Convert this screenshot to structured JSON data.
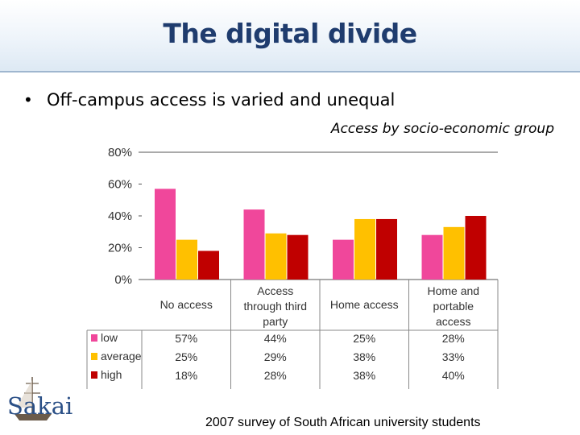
{
  "slide": {
    "title": "The digital divide",
    "bullet": "Off-campus access is varied and unequal",
    "chart_caption": "Access by socio-economic group",
    "footer": "2007 survey of South African university students",
    "logo_text": "Sakai"
  },
  "colors": {
    "low": "#f0479b",
    "average": "#ffc000",
    "high": "#c00000",
    "title": "#1f3c6e"
  },
  "chart_data": {
    "type": "bar",
    "title": "Access by socio-economic group",
    "categories": [
      [
        "No access"
      ],
      [
        "Access",
        "through third",
        "party"
      ],
      [
        "Home access"
      ],
      [
        "Home and",
        "portable",
        "access"
      ]
    ],
    "series": [
      {
        "name": "low",
        "values": [
          57,
          44,
          25,
          28
        ],
        "labels": [
          "57%",
          "44%",
          "25%",
          "28%"
        ]
      },
      {
        "name": "average",
        "values": [
          25,
          29,
          38,
          33
        ],
        "labels": [
          "25%",
          "29%",
          "38%",
          "33%"
        ]
      },
      {
        "name": "high",
        "values": [
          18,
          28,
          38,
          40
        ],
        "labels": [
          "18%",
          "28%",
          "38%",
          "40%"
        ]
      }
    ],
    "yticks": [
      "0%",
      "20%",
      "40%",
      "60%",
      "80%"
    ],
    "ylim": [
      0,
      80
    ],
    "legend": "data-table",
    "grid": false
  }
}
